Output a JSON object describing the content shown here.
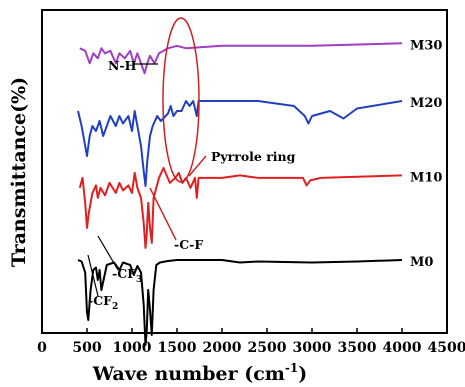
{
  "chart_data": {
    "type": "line",
    "xlabel": "Wave number (cm",
    "xlabel_sup": "-1",
    "xlabel_tail": ")",
    "ylabel": "Transmittance(%)",
    "xlim": [
      0,
      4500
    ],
    "xticks": [
      "0",
      "500",
      "1000",
      "1500",
      "2000",
      "2500",
      "3000",
      "3500",
      "4000",
      "4500"
    ],
    "yticks_shown": false,
    "legend": "labels at right end of each curve",
    "series": [
      {
        "name": "M0",
        "color": "#000000",
        "offset": 0,
        "points": [
          [
            400,
            0.0
          ],
          [
            440,
            -0.3
          ],
          [
            480,
            -2.5
          ],
          [
            500,
            -10.5
          ],
          [
            515,
            -12
          ],
          [
            540,
            -6
          ],
          [
            570,
            -2
          ],
          [
            600,
            -1.5
          ],
          [
            620,
            -4
          ],
          [
            640,
            -2
          ],
          [
            660,
            -6
          ],
          [
            690,
            -3.5
          ],
          [
            720,
            -1
          ],
          [
            800,
            -0.5
          ],
          [
            860,
            -2
          ],
          [
            900,
            -0.5
          ],
          [
            980,
            -1
          ],
          [
            1020,
            -3
          ],
          [
            1060,
            -1.2
          ],
          [
            1100,
            -2.5
          ],
          [
            1130,
            -9
          ],
          [
            1150,
            -17
          ],
          [
            1165,
            -14
          ],
          [
            1180,
            -6
          ],
          [
            1200,
            -10
          ],
          [
            1220,
            -15
          ],
          [
            1240,
            -6
          ],
          [
            1270,
            -1
          ],
          [
            1310,
            -0.5
          ],
          [
            1400,
            -0.2
          ],
          [
            1500,
            0
          ],
          [
            2000,
            0
          ],
          [
            2200,
            -0.5
          ],
          [
            2400,
            -0.3
          ],
          [
            3000,
            -0.5
          ],
          [
            3500,
            -0.3
          ],
          [
            4000,
            0
          ]
        ]
      },
      {
        "name": "M10",
        "color": "#e02020",
        "offset": 76,
        "points": [
          [
            420,
            -2
          ],
          [
            450,
            0
          ],
          [
            480,
            -5
          ],
          [
            500,
            -10
          ],
          [
            520,
            -7
          ],
          [
            560,
            -3
          ],
          [
            600,
            -1.5
          ],
          [
            620,
            -4
          ],
          [
            650,
            -2
          ],
          [
            700,
            -3.5
          ],
          [
            750,
            -1
          ],
          [
            820,
            -3
          ],
          [
            860,
            -1
          ],
          [
            900,
            -2.5
          ],
          [
            960,
            -1.5
          ],
          [
            1000,
            -3
          ],
          [
            1030,
            1
          ],
          [
            1060,
            -2
          ],
          [
            1100,
            -4
          ],
          [
            1130,
            -9
          ],
          [
            1150,
            -14
          ],
          [
            1165,
            -11
          ],
          [
            1180,
            -5
          ],
          [
            1200,
            -10
          ],
          [
            1220,
            -13
          ],
          [
            1240,
            -4
          ],
          [
            1300,
            0
          ],
          [
            1350,
            2
          ],
          [
            1420,
            -1
          ],
          [
            1480,
            0
          ],
          [
            1520,
            1
          ],
          [
            1560,
            -1
          ],
          [
            1600,
            0
          ],
          [
            1650,
            -2
          ],
          [
            1700,
            0
          ],
          [
            1720,
            -4
          ],
          [
            1740,
            0
          ],
          [
            1800,
            0
          ],
          [
            2000,
            0
          ],
          [
            2200,
            0.5
          ],
          [
            2400,
            0
          ],
          [
            2900,
            0
          ],
          [
            2940,
            -1.5
          ],
          [
            2980,
            -0.5
          ],
          [
            3100,
            0
          ],
          [
            4000,
            0.5
          ]
        ]
      },
      {
        "name": "M20",
        "color": "#2040c0",
        "offset": 138,
        "points": [
          [
            400,
            0
          ],
          [
            440,
            -3
          ],
          [
            470,
            -6
          ],
          [
            500,
            -9
          ],
          [
            530,
            -5
          ],
          [
            560,
            -3
          ],
          [
            600,
            -4
          ],
          [
            640,
            -2
          ],
          [
            680,
            -5
          ],
          [
            720,
            -3
          ],
          [
            760,
            -1
          ],
          [
            820,
            -3
          ],
          [
            860,
            -1
          ],
          [
            900,
            -2.5
          ],
          [
            960,
            -1
          ],
          [
            1000,
            -4
          ],
          [
            1030,
            0
          ],
          [
            1060,
            -3
          ],
          [
            1100,
            -7
          ],
          [
            1130,
            -12
          ],
          [
            1150,
            -15
          ],
          [
            1170,
            -10
          ],
          [
            1200,
            -5
          ],
          [
            1230,
            -3
          ],
          [
            1280,
            -1
          ],
          [
            1320,
            -2
          ],
          [
            1400,
            -0.5
          ],
          [
            1430,
            1
          ],
          [
            1460,
            -1
          ],
          [
            1500,
            0
          ],
          [
            1550,
            0
          ],
          [
            1600,
            2
          ],
          [
            1640,
            1
          ],
          [
            1680,
            2
          ],
          [
            1720,
            -1
          ],
          [
            1740,
            2
          ],
          [
            2000,
            2
          ],
          [
            2400,
            2
          ],
          [
            2800,
            1
          ],
          [
            2920,
            -1
          ],
          [
            2960,
            -2.5
          ],
          [
            3000,
            -1
          ],
          [
            3200,
            0
          ],
          [
            3350,
            -1.5
          ],
          [
            3500,
            0.5
          ],
          [
            4000,
            2
          ]
        ]
      },
      {
        "name": "M30",
        "color": "#a040c0",
        "offset": 196,
        "points": [
          [
            420,
            0
          ],
          [
            480,
            -0.5
          ],
          [
            530,
            -3
          ],
          [
            570,
            -1
          ],
          [
            620,
            -2
          ],
          [
            660,
            0
          ],
          [
            700,
            -1
          ],
          [
            760,
            -0.5
          ],
          [
            820,
            -3
          ],
          [
            860,
            -1
          ],
          [
            920,
            -2
          ],
          [
            980,
            -0.5
          ],
          [
            1020,
            -3
          ],
          [
            1060,
            -1
          ],
          [
            1100,
            -3
          ],
          [
            1140,
            -5
          ],
          [
            1170,
            -3
          ],
          [
            1200,
            -1.5
          ],
          [
            1250,
            -3
          ],
          [
            1300,
            -1
          ],
          [
            1400,
            0
          ],
          [
            1500,
            0.5
          ],
          [
            1600,
            0
          ],
          [
            2000,
            0.5
          ],
          [
            3000,
            0.5
          ],
          [
            4000,
            1
          ]
        ]
      }
    ],
    "annotations": {
      "nh": "N-H",
      "pyrrole": "Pyrrole ring",
      "cf": "-C-F",
      "cf3": "-CF",
      "cf3_sub": "3",
      "cf2": "-CF",
      "cf2_sub": "2"
    },
    "colors": {
      "axis": "#000000",
      "ellipse": "#d02020"
    }
  }
}
